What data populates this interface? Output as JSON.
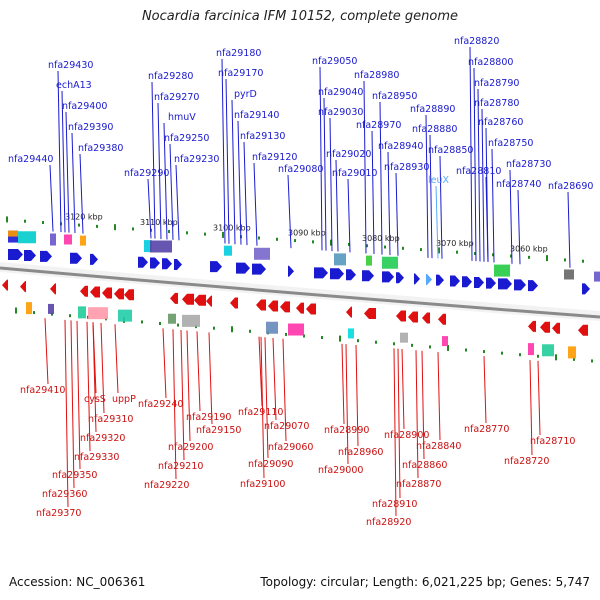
{
  "title": "Nocardia farcinica IFM 10152, complete genome",
  "footer": {
    "accession": "Accession: NC_006361",
    "topology": "Topology: circular; Length: 6,021,225 bp; Genes: 5,747"
  },
  "colors": {
    "forward_gene": "#1a1ad0",
    "reverse_gene": "#e01010",
    "special_gene": "#55aaff",
    "backbone": "#8a8a8a",
    "tick": "#228822"
  },
  "scale_labels": [
    "3120 kbp",
    "3110 kbp",
    "3100 kbp",
    "3090 kbp",
    "3080 kbp",
    "3070 kbp",
    "3060 kbp"
  ],
  "top_genes": [
    "nfa29430",
    "echA13",
    "nfa29400",
    "nfa29390",
    "nfa29380",
    "nfa29440",
    "nfa29280",
    "nfa29270",
    "hmuV",
    "nfa29250",
    "nfa29230",
    "nfa29290",
    "nfa29180",
    "nfa29170",
    "pyrD",
    "nfa29140",
    "nfa29130",
    "nfa29120",
    "nfa29080",
    "nfa29050",
    "nfa29040",
    "nfa29030",
    "nfa29020",
    "nfa29010",
    "nfa28980",
    "nfa28950",
    "nfa28970",
    "nfa28940",
    "nfa28930",
    "nfa28890",
    "nfa28880",
    "nfa28850",
    "leuX",
    "nfa28820",
    "nfa28800",
    "nfa28790",
    "nfa28780",
    "nfa28760",
    "nfa28750",
    "nfa28730",
    "nfa28810",
    "nfa28740",
    "nfa28690"
  ],
  "bottom_genes": [
    "nfa29410",
    "cysS",
    "uppP",
    "nfa29310",
    "nfa29320",
    "nfa29330",
    "nfa29350",
    "nfa29360",
    "nfa29370",
    "nfa29240",
    "nfa29190",
    "nfa29200",
    "nfa29150",
    "nfa29210",
    "nfa29220",
    "nfa29110",
    "nfa29070",
    "nfa29060",
    "nfa29090",
    "nfa29100",
    "nfa28990",
    "nfa28960",
    "nfa29000",
    "nfa28900",
    "nfa28840",
    "nfa28860",
    "nfa28870",
    "nfa28910",
    "nfa28920",
    "nfa28770",
    "nfa28710",
    "nfa28720"
  ]
}
